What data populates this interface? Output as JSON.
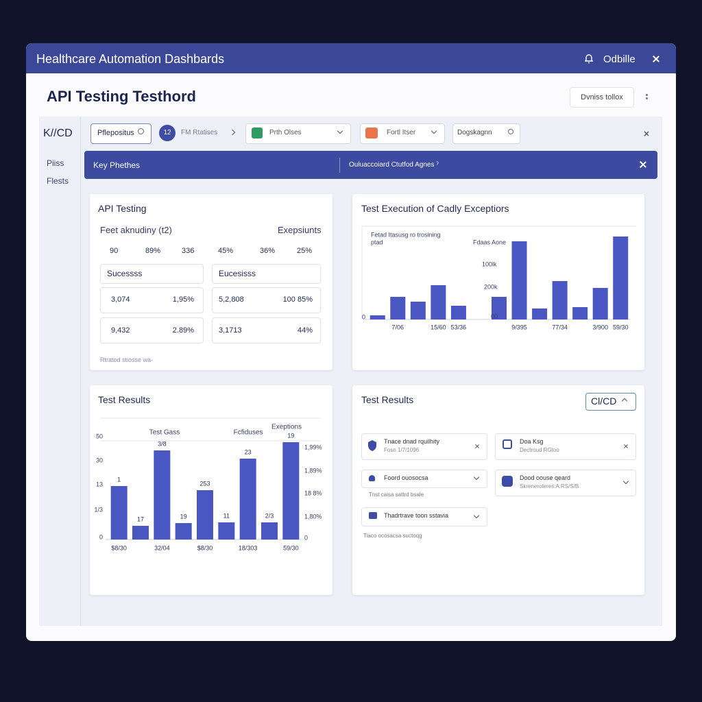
{
  "header": {
    "title": "Healthcare Automation Dashbards",
    "user": "Odbille"
  },
  "page": {
    "title": "API Testing Testhord",
    "button": "Dvniss tollox"
  },
  "sidebar": {
    "label": "K//CD",
    "items": [
      "Piiss",
      "Flests"
    ]
  },
  "filters": {
    "items": [
      "Pflepositus",
      "FM Rtatises",
      "Prth Olses",
      "Fortl Itser",
      "Dogskagnn"
    ],
    "badge": "12"
  },
  "banner": {
    "left": "Key Phethes",
    "right": "Ouluaccoiard Ctutfod Agnes ˀ"
  },
  "api_panel": {
    "title": "API Testing",
    "subtitle": "Feet aknudiny (t2)",
    "right_label": "Exepsiunts",
    "stats": [
      "90",
      "89%",
      "336",
      "45%",
      "36%",
      "25%"
    ],
    "cards": [
      {
        "header": "Sucessss",
        "rows": [
          [
            "3,074",
            "1,95%"
          ],
          [
            "9,432",
            "2.89%"
          ]
        ]
      },
      {
        "header": "Eucesisss",
        "rows": [
          [
            "5,2,808",
            "100 85%"
          ],
          [
            "3,1713",
            "44%"
          ]
        ]
      }
    ],
    "footnote": "Rtratod stiosse wa-"
  },
  "results_panel": {
    "title": "Test Results",
    "dropdown": "Cl/CD",
    "items": [
      {
        "title": "Tnace dnad rquilhity",
        "sub": "Fosn 1/7/1096"
      },
      {
        "title": "Doa Ksg",
        "sub": "Dectroud RGtoo"
      },
      {
        "title": "Foord ouosocsa"
      },
      {
        "title": "Dood oouse qeard",
        "sub": "Skreneroteres:A:RS/S/B"
      },
      {
        "title": "Thadrtrave toon sstavia"
      }
    ],
    "notes": [
      "Tnst caisa sattrd bsale",
      "Tiaco ocosacsa suctoqg"
    ]
  },
  "chart_data": [
    {
      "type": "bar",
      "title": "Test Execution of Cadly Exceptiors",
      "categories": [
        null,
        "7/06",
        null,
        "15/60",
        "53/36",
        null,
        null,
        "9/395",
        null,
        "77/34",
        null,
        "3/900",
        "59/30"
      ],
      "values": [
        6,
        33,
        26,
        50,
        20,
        null,
        33,
        114,
        16,
        56,
        18,
        46,
        121
      ],
      "color": "#4a57c2",
      "ylim": [
        0,
        130
      ],
      "yticks": [
        0
      ],
      "annotations": [
        "Fetad Itasusg ro trosining",
        "ptad",
        "Fdaas Aone",
        "100lk",
        "200k",
        "00"
      ]
    },
    {
      "type": "bar",
      "title": "Test Results",
      "categories": [
        "$8/30",
        null,
        "32/04",
        null,
        "$8/30",
        null,
        "18/303",
        null,
        "59/30"
      ],
      "values": [
        78,
        20,
        130,
        24,
        72,
        25,
        118,
        25,
        142
      ],
      "color": "#4a57c2",
      "ylim": [
        0,
        150
      ],
      "yticks": [
        0
      ],
      "bar_notes": [
        "1",
        "17",
        "3/8",
        "19",
        "253",
        "11",
        "23",
        "2/3",
        "19"
      ],
      "left_notes": [
        "50",
        "30",
        "13",
        "1/3"
      ],
      "right_notes": [
        "1,99%",
        "1,89%",
        "18 8%",
        "1,80%",
        "0"
      ],
      "legend_notes": [
        "Test Gass",
        "Fcfiduses",
        "Exeptions"
      ]
    }
  ]
}
